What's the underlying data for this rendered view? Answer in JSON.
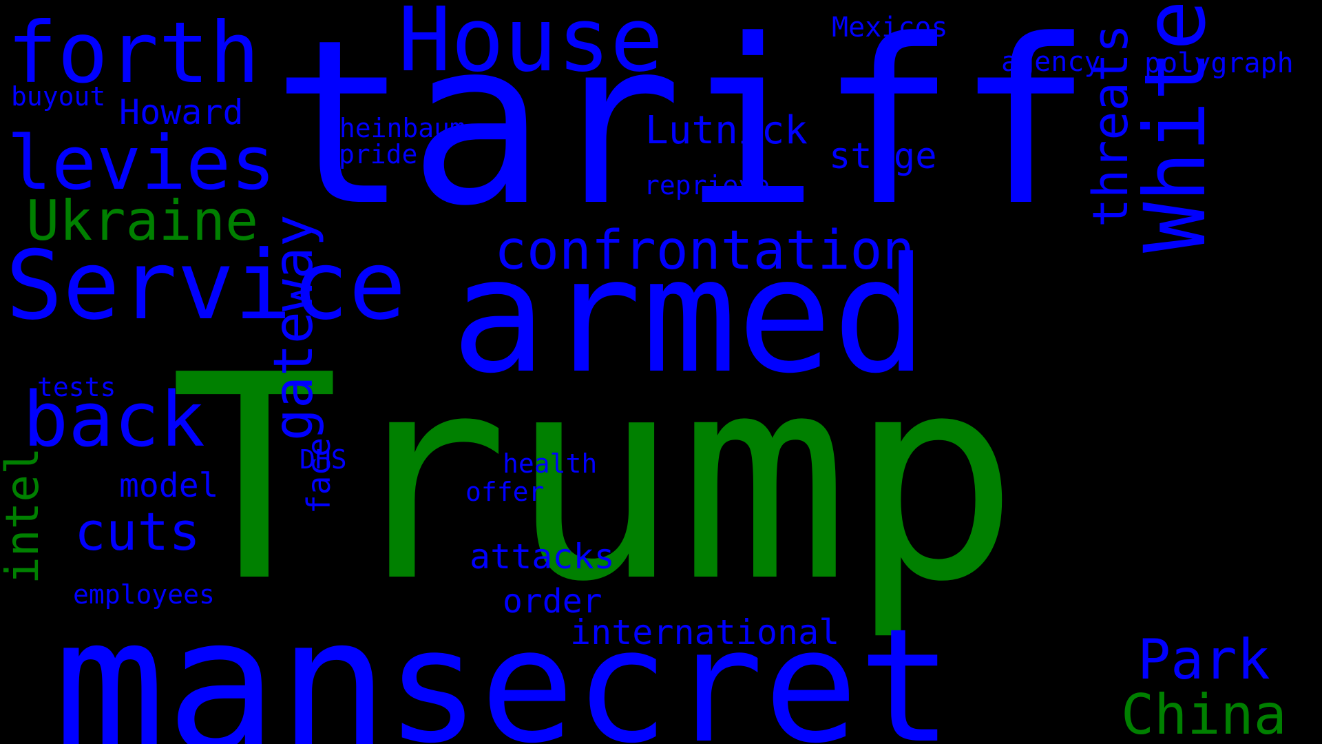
{
  "colors": {
    "background": "#000000",
    "blue": "#0000ff",
    "green": "#008000"
  },
  "words": [
    {
      "key": "trump",
      "text": "Trump",
      "color": "green"
    },
    {
      "key": "tariff",
      "text": "tariff",
      "color": "blue"
    },
    {
      "key": "man",
      "text": "man",
      "color": "blue"
    },
    {
      "key": "secret",
      "text": "secret",
      "color": "blue"
    },
    {
      "key": "armed",
      "text": "armed",
      "color": "blue"
    },
    {
      "key": "service",
      "text": "Service",
      "color": "blue"
    },
    {
      "key": "house",
      "text": "House",
      "color": "blue"
    },
    {
      "key": "forth",
      "text": "forth",
      "color": "blue"
    },
    {
      "key": "white",
      "text": "White",
      "color": "blue"
    },
    {
      "key": "levies",
      "text": "levies",
      "color": "blue"
    },
    {
      "key": "back",
      "text": "back",
      "color": "blue"
    },
    {
      "key": "confrontation",
      "text": "confrontation",
      "color": "blue"
    },
    {
      "key": "ukraine",
      "text": "Ukraine",
      "color": "green"
    },
    {
      "key": "gateway",
      "text": "gateway",
      "color": "blue"
    },
    {
      "key": "threats",
      "text": "threats",
      "color": "blue"
    },
    {
      "key": "cuts",
      "text": "cuts",
      "color": "blue"
    },
    {
      "key": "intel",
      "text": "intel",
      "color": "green"
    },
    {
      "key": "china",
      "text": "China",
      "color": "green"
    },
    {
      "key": "park",
      "text": "Park",
      "color": "blue"
    },
    {
      "key": "lutnick",
      "text": "Lutnick",
      "color": "blue"
    },
    {
      "key": "stage",
      "text": "stage",
      "color": "blue"
    },
    {
      "key": "howard",
      "text": "Howard",
      "color": "blue"
    },
    {
      "key": "model",
      "text": "model",
      "color": "blue"
    },
    {
      "key": "attacks",
      "text": "attacks",
      "color": "blue"
    },
    {
      "key": "international",
      "text": "international",
      "color": "blue"
    },
    {
      "key": "order",
      "text": "order",
      "color": "blue"
    },
    {
      "key": "face",
      "text": "face",
      "color": "blue"
    },
    {
      "key": "mexicos",
      "text": "Mexicos",
      "color": "blue"
    },
    {
      "key": "agency",
      "text": "agency",
      "color": "blue"
    },
    {
      "key": "polygraph",
      "text": "polygraph",
      "color": "blue"
    },
    {
      "key": "buyout",
      "text": "buyout",
      "color": "blue"
    },
    {
      "key": "sheinbaum",
      "text": "Sheinbaum",
      "color": "blue"
    },
    {
      "key": "pride",
      "text": "pride",
      "color": "blue"
    },
    {
      "key": "reprieve",
      "text": "reprieve",
      "color": "blue"
    },
    {
      "key": "tests",
      "text": "tests",
      "color": "blue"
    },
    {
      "key": "dhs",
      "text": "DHS",
      "color": "blue"
    },
    {
      "key": "health",
      "text": "health",
      "color": "blue"
    },
    {
      "key": "offer",
      "text": "offer",
      "color": "blue"
    },
    {
      "key": "employees",
      "text": "employees",
      "color": "blue"
    }
  ]
}
